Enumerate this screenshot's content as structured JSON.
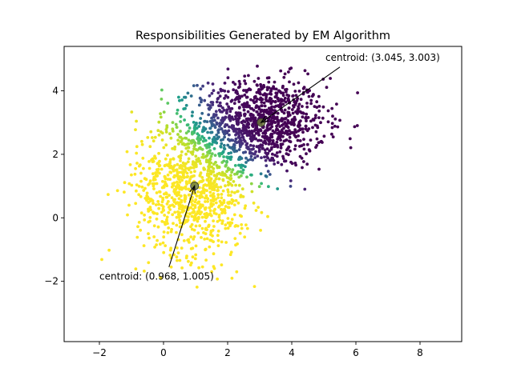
{
  "chart_data": {
    "type": "scatter",
    "title": "Responsibilities Generated by EM Algorithm",
    "xlabel": "",
    "ylabel": "",
    "xlim": [
      -3.1,
      9.3
    ],
    "ylim": [
      -3.9,
      5.4
    ],
    "xticks": [
      -2,
      0,
      2,
      4,
      6,
      8
    ],
    "yticks": [
      -2,
      0,
      2,
      4
    ],
    "colormap": "viridis",
    "series": [
      {
        "component": 1,
        "n_points": 1000,
        "mean": [
          3.045,
          3.003
        ],
        "std": [
          1.0,
          0.7
        ],
        "color": "#440154"
      },
      {
        "component": 2,
        "n_points": 1000,
        "mean": [
          0.968,
          1.005
        ],
        "std": [
          0.9,
          1.1
        ],
        "color": "#fde725"
      }
    ],
    "centroids": [
      {
        "x": 3.045,
        "y": 3.003,
        "label": "centroid: (3.045, 3.003)"
      },
      {
        "x": 0.968,
        "y": 1.005,
        "label": "centroid: (0.968, 1.005)"
      }
    ],
    "annotations": [
      {
        "text": "centroid: (3.045, 3.003)",
        "text_x": 5.05,
        "text_y": 4.95,
        "arrow_to": [
          3.045,
          3.003
        ]
      },
      {
        "text": "centroid: (0.968, 1.005)",
        "text_x": -2.0,
        "text_y": -1.95,
        "arrow_to": [
          0.968,
          1.005
        ]
      }
    ],
    "centroid_marker_color": "#6b7a3a",
    "grid": false,
    "legend": "none"
  }
}
